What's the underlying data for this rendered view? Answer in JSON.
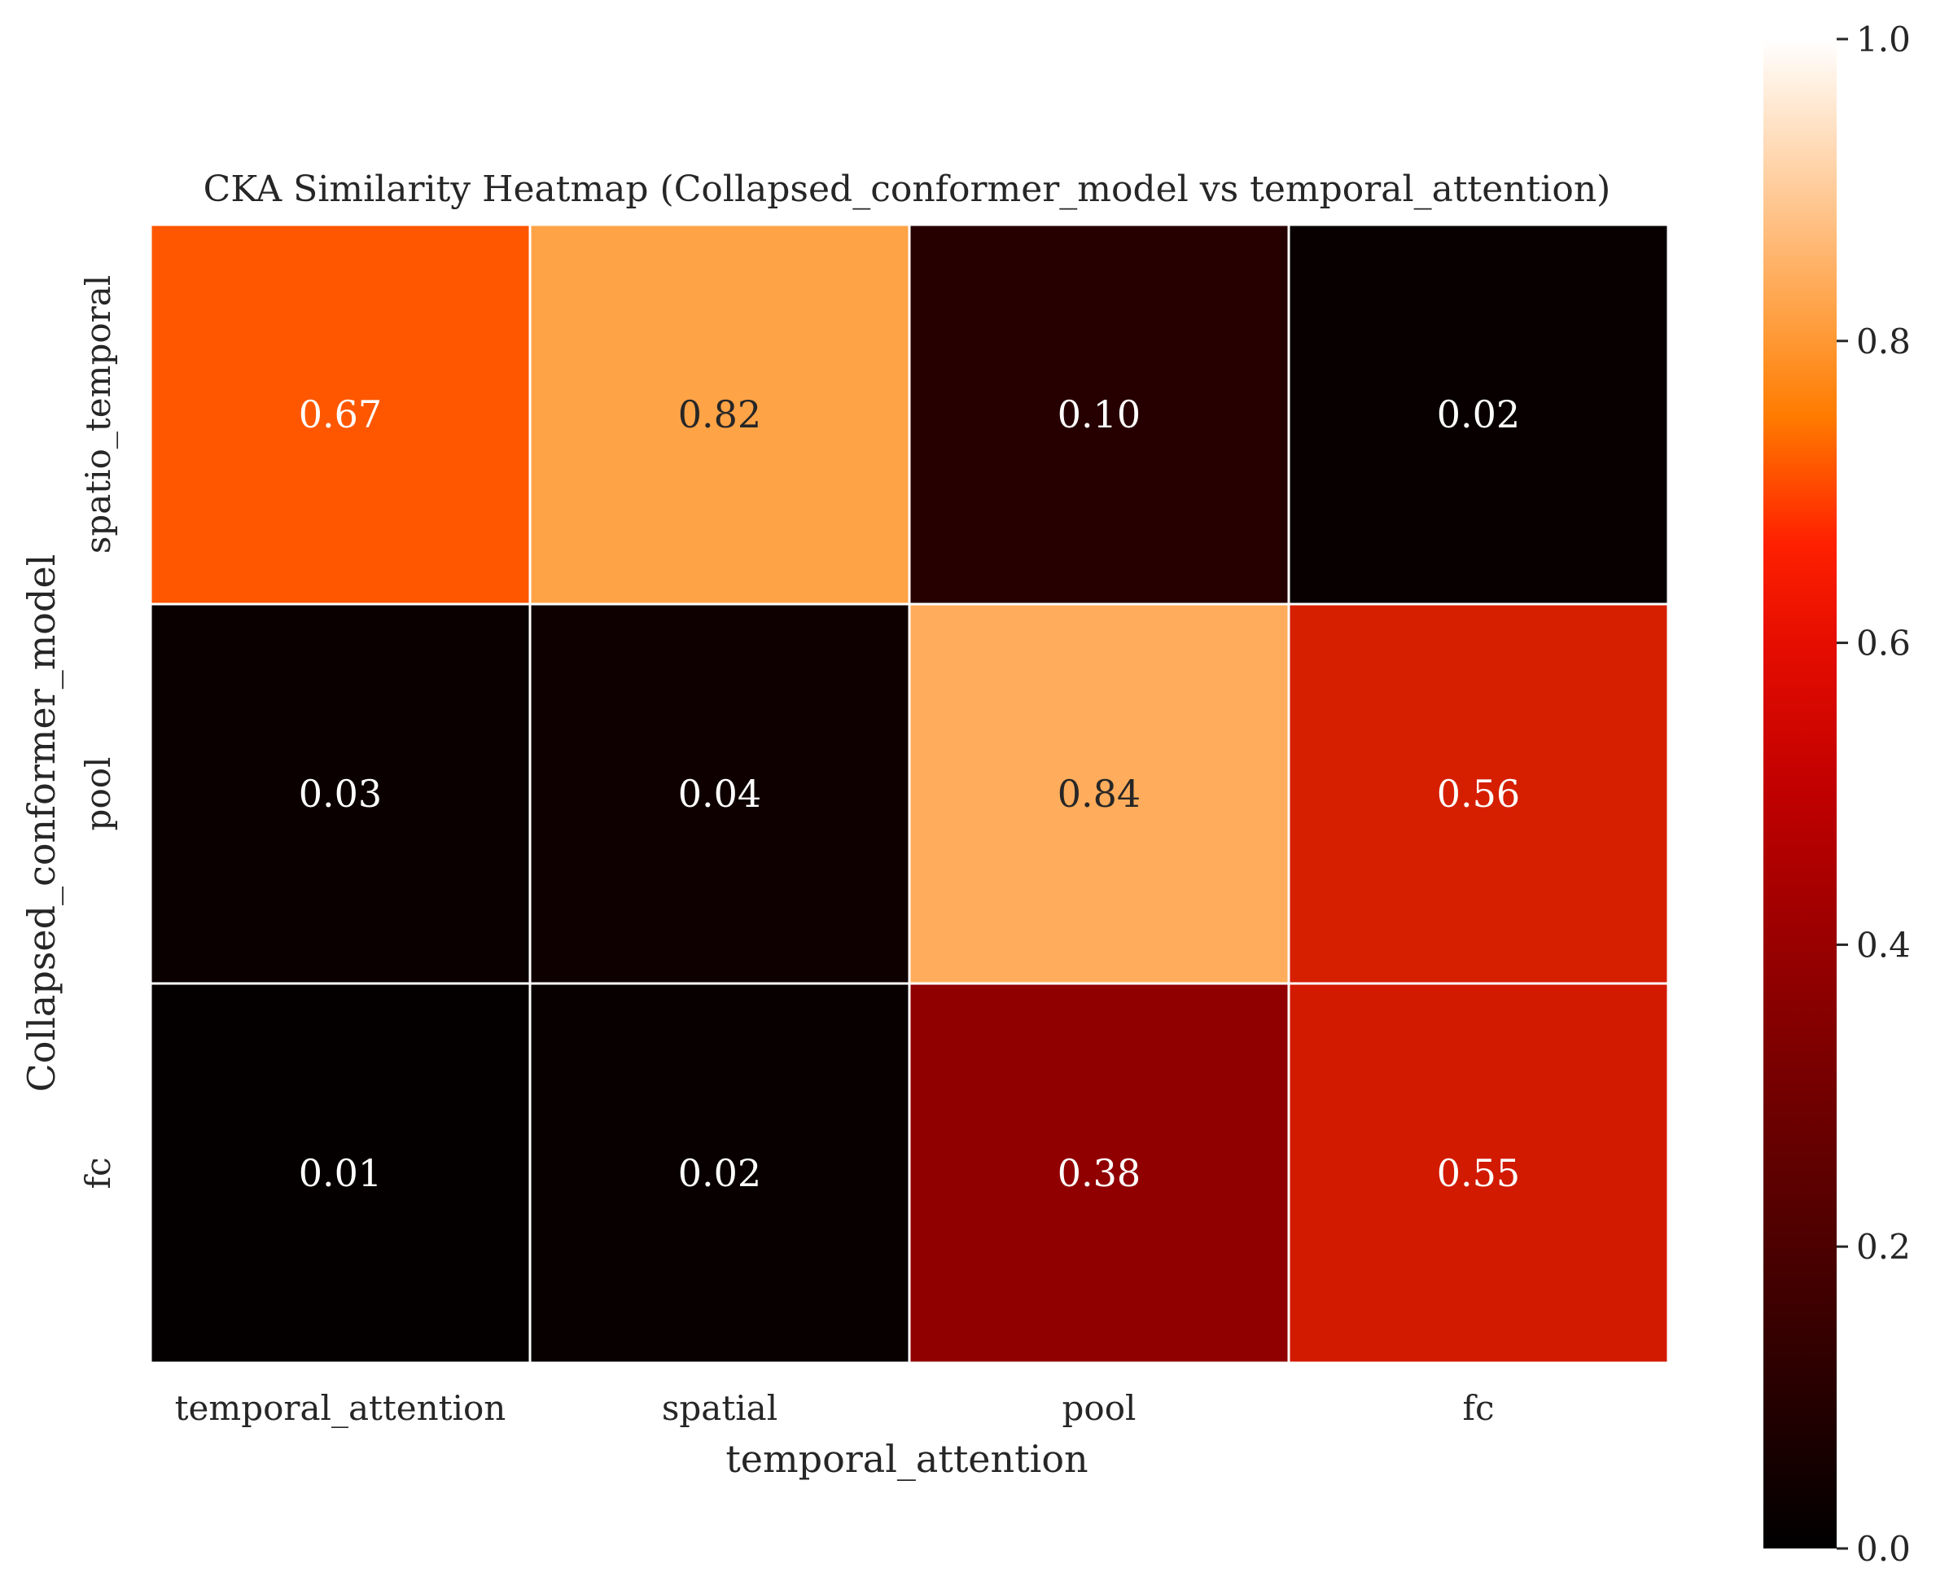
{
  "chart_data": {
    "type": "heatmap",
    "title": "CKA Similarity Heatmap (Collapsed_conformer_model vs temporal_attention)",
    "xlabel": "temporal_attention",
    "ylabel": "Collapsed_conformer_model",
    "x_categories": [
      "temporal_attention",
      "spatial",
      "pool",
      "fc"
    ],
    "y_categories": [
      "spatio_temporal",
      "pool",
      "fc"
    ],
    "values": [
      [
        0.67,
        0.82,
        0.1,
        0.02
      ],
      [
        0.03,
        0.04,
        0.84,
        0.56
      ],
      [
        0.01,
        0.02,
        0.38,
        0.55
      ]
    ],
    "cell_labels": [
      [
        "0.67",
        "0.82",
        "0.10",
        "0.02"
      ],
      [
        "0.03",
        "0.04",
        "0.84",
        "0.56"
      ],
      [
        "0.01",
        "0.02",
        "0.38",
        "0.55"
      ]
    ],
    "colormap": "gist_heat",
    "vmin": 0.0,
    "vmax": 1.0,
    "colorbar_ticks": [
      "0.0",
      "0.2",
      "0.4",
      "0.6",
      "0.8",
      "1.0"
    ],
    "grid_line_color": "#ffffff",
    "text_color": "#262626"
  }
}
